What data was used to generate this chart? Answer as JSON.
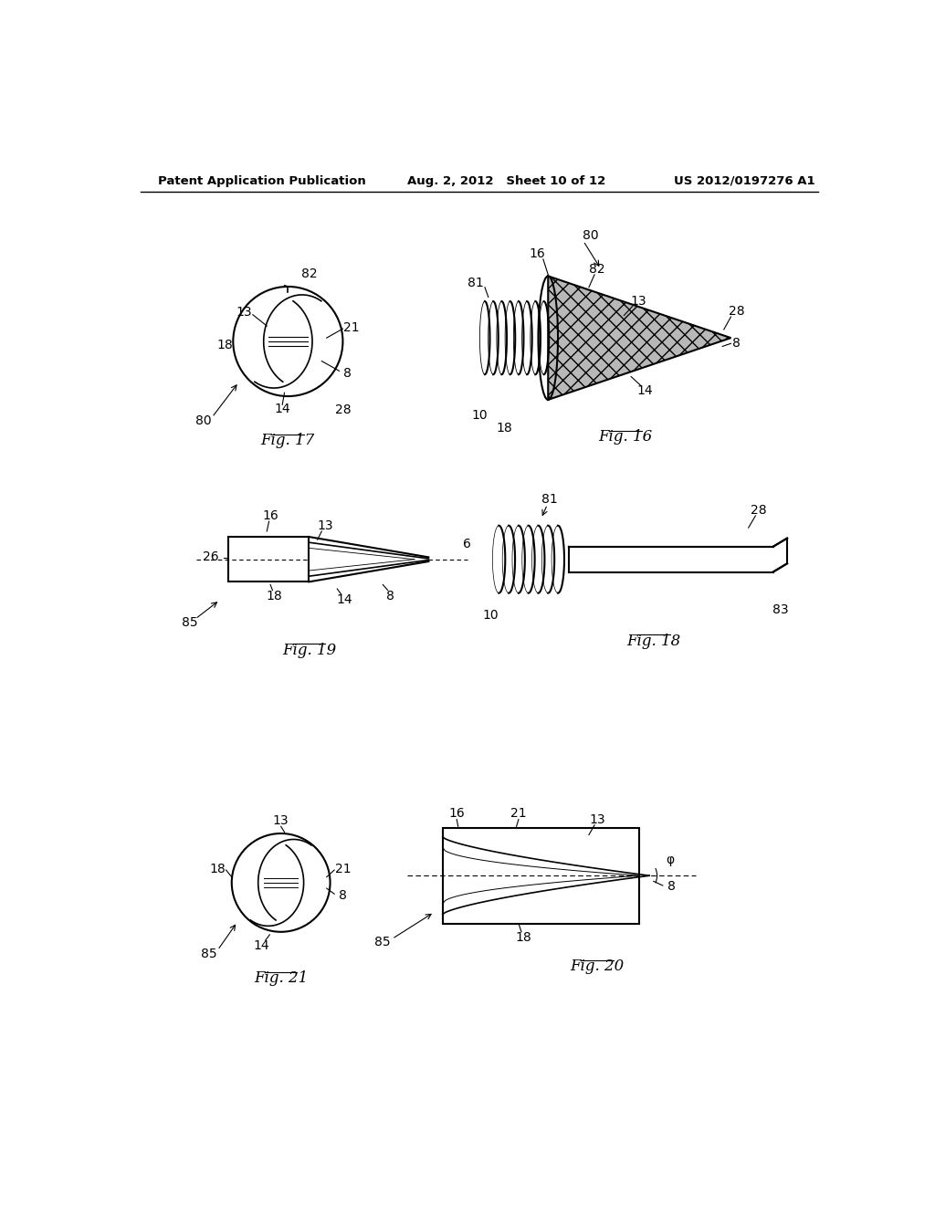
{
  "bg_color": "#ffffff",
  "header_left": "Patent Application Publication",
  "header_mid": "Aug. 2, 2012   Sheet 10 of 12",
  "header_right": "US 2012/0197276 A1"
}
